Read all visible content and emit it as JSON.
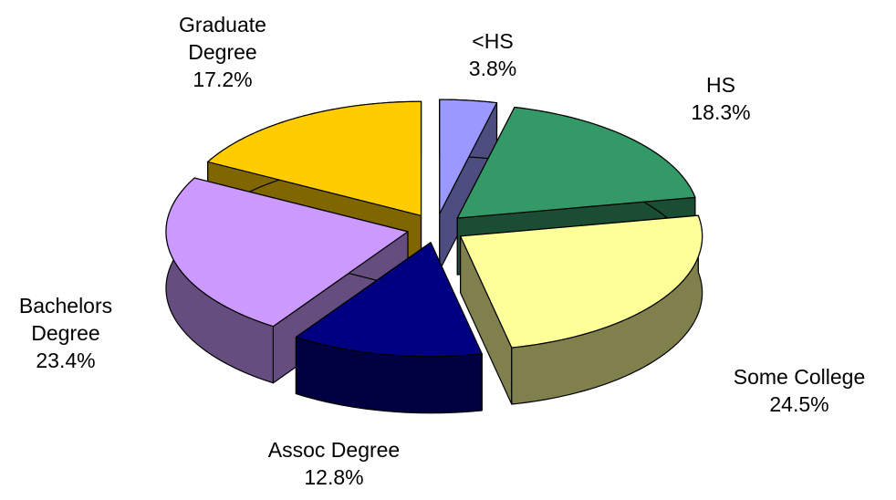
{
  "chart_data": {
    "type": "pie3d",
    "categories": [
      "<HS",
      "HS",
      "Some College",
      "Assoc Degree",
      "Bachelors Degree",
      "Graduate Degree"
    ],
    "values": [
      3.8,
      18.3,
      24.5,
      12.8,
      23.4,
      17.2
    ],
    "value_labels": [
      "3.8%",
      "18.3%",
      "24.5%",
      "12.8%",
      "23.4%",
      "17.2%"
    ],
    "colors": [
      "#9999ff",
      "#339966",
      "#ffff99",
      "#000080",
      "#cc99ff",
      "#ffcc00"
    ]
  }
}
